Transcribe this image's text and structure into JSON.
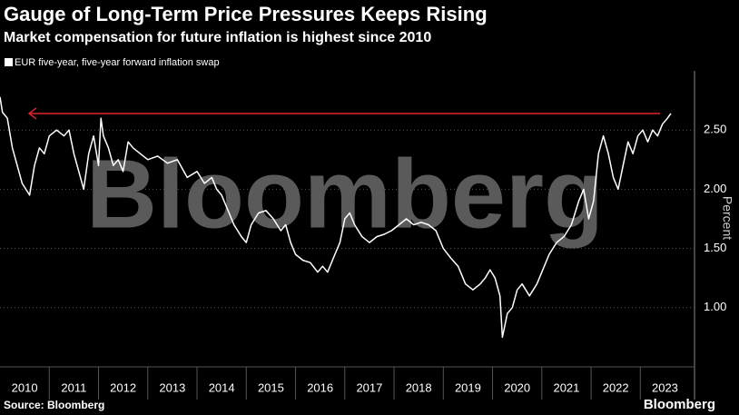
{
  "chart_data": {
    "type": "line",
    "title": "Gauge of Long-Term Price Pressures Keeps Rising",
    "subtitle": "Market compensation for future inflation is highest since 2010",
    "y_label": "Percent",
    "source": "Source: Bloomberg",
    "brand": "Bloomberg",
    "watermark": "Bloomberg",
    "xlim": [
      2010,
      2024.1
    ],
    "xticks": [
      2010,
      2011,
      2012,
      2013,
      2014,
      2015,
      2016,
      2017,
      2018,
      2019,
      2020,
      2021,
      2022,
      2023
    ],
    "ylim": [
      0.5,
      3.0
    ],
    "yticks": [
      {
        "value": 1.0,
        "label": "1.00"
      },
      {
        "value": 1.5,
        "label": "1.50"
      },
      {
        "value": 2.0,
        "label": "2.00"
      },
      {
        "value": 2.5,
        "label": "2.50"
      }
    ],
    "grid": true,
    "reference_line": {
      "value": 2.64,
      "color": "#e0262b"
    },
    "series": [
      {
        "name": "EUR five-year, five-year forward inflation swap",
        "color": "#ffffff",
        "x": [
          2010.0,
          2010.05,
          2010.15,
          2010.25,
          2010.35,
          2010.45,
          2010.6,
          2010.7,
          2010.8,
          2010.9,
          2011.0,
          2011.15,
          2011.3,
          2011.4,
          2011.5,
          2011.6,
          2011.7,
          2011.8,
          2011.9,
          2012.0,
          2012.05,
          2012.1,
          2012.2,
          2012.3,
          2012.4,
          2012.5,
          2012.6,
          2012.7,
          2012.85,
          2013.0,
          2013.2,
          2013.4,
          2013.6,
          2013.8,
          2014.0,
          2014.15,
          2014.3,
          2014.4,
          2014.5,
          2014.6,
          2014.75,
          2014.9,
          2015.0,
          2015.1,
          2015.25,
          2015.4,
          2015.55,
          2015.7,
          2015.8,
          2015.9,
          2016.0,
          2016.15,
          2016.3,
          2016.45,
          2016.55,
          2016.65,
          2016.8,
          2016.9,
          2017.0,
          2017.1,
          2017.2,
          2017.35,
          2017.5,
          2017.65,
          2017.8,
          2017.95,
          2018.1,
          2018.25,
          2018.4,
          2018.55,
          2018.7,
          2018.85,
          2019.0,
          2019.15,
          2019.3,
          2019.45,
          2019.6,
          2019.75,
          2019.85,
          2019.95,
          2020.05,
          2020.15,
          2020.2,
          2020.3,
          2020.4,
          2020.5,
          2020.6,
          2020.75,
          2020.9,
          2021.0,
          2021.15,
          2021.3,
          2021.45,
          2021.6,
          2021.75,
          2021.85,
          2021.95,
          2022.05,
          2022.15,
          2022.25,
          2022.35,
          2022.45,
          2022.55,
          2022.65,
          2022.75,
          2022.85,
          2022.95,
          2023.05,
          2023.15,
          2023.25,
          2023.35,
          2023.45,
          2023.55,
          2023.62
        ],
        "values": [
          2.78,
          2.65,
          2.6,
          2.35,
          2.2,
          2.05,
          1.95,
          2.2,
          2.35,
          2.3,
          2.45,
          2.5,
          2.45,
          2.5,
          2.3,
          2.15,
          2.0,
          2.3,
          2.45,
          2.2,
          2.6,
          2.45,
          2.35,
          2.2,
          2.25,
          2.15,
          2.4,
          2.35,
          2.3,
          2.25,
          2.28,
          2.22,
          2.25,
          2.1,
          2.15,
          2.05,
          2.1,
          2.0,
          1.95,
          1.85,
          1.7,
          1.6,
          1.55,
          1.7,
          1.8,
          1.82,
          1.75,
          1.65,
          1.7,
          1.55,
          1.45,
          1.4,
          1.38,
          1.3,
          1.35,
          1.3,
          1.45,
          1.55,
          1.75,
          1.8,
          1.7,
          1.6,
          1.55,
          1.6,
          1.62,
          1.65,
          1.7,
          1.75,
          1.7,
          1.72,
          1.7,
          1.65,
          1.5,
          1.42,
          1.35,
          1.2,
          1.15,
          1.2,
          1.25,
          1.32,
          1.25,
          1.1,
          0.75,
          0.95,
          1.0,
          1.15,
          1.2,
          1.1,
          1.2,
          1.3,
          1.45,
          1.55,
          1.6,
          1.7,
          1.9,
          2.0,
          1.75,
          1.9,
          2.3,
          2.45,
          2.3,
          2.1,
          2.0,
          2.2,
          2.4,
          2.3,
          2.45,
          2.5,
          2.4,
          2.5,
          2.45,
          2.55,
          2.6,
          2.64
        ]
      }
    ]
  }
}
